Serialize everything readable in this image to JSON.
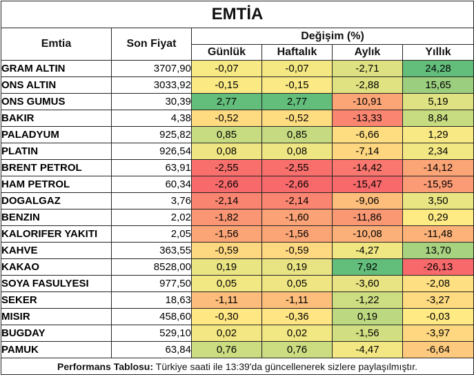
{
  "title": "EMTİA",
  "headers": {
    "commodity": "Emtia",
    "last_price": "Son Fiyat",
    "change_group": "Değişim (%)",
    "daily": "Günlük",
    "weekly": "Haftalık",
    "monthly": "Aylık",
    "yearly": "Yıllık"
  },
  "rows": [
    {
      "name": "GRAM ALTIN",
      "price": "3707,90",
      "daily": "-0,07",
      "weekly": "-0,07",
      "monthly": "-2,71",
      "yearly": "24,28"
    },
    {
      "name": "ONS ALTIN",
      "price": "3033,92",
      "daily": "-0,15",
      "weekly": "-0,15",
      "monthly": "-2,88",
      "yearly": "15,65"
    },
    {
      "name": "ONS GUMUS",
      "price": "30,39",
      "daily": "2,77",
      "weekly": "2,77",
      "monthly": "-10,91",
      "yearly": "5,19"
    },
    {
      "name": "BAKIR",
      "price": "4,38",
      "daily": "-0,52",
      "weekly": "-0,52",
      "monthly": "-13,33",
      "yearly": "8,84"
    },
    {
      "name": "PALADYUM",
      "price": "925,82",
      "daily": "0,85",
      "weekly": "0,85",
      "monthly": "-6,66",
      "yearly": "1,29"
    },
    {
      "name": "PLATIN",
      "price": "926,54",
      "daily": "0,08",
      "weekly": "0,08",
      "monthly": "-7,14",
      "yearly": "2,34"
    },
    {
      "name": "BRENT PETROL",
      "price": "63,91",
      "daily": "-2,55",
      "weekly": "-2,55",
      "monthly": "-14,42",
      "yearly": "-14,12"
    },
    {
      "name": "HAM PETROL",
      "price": "60,34",
      "daily": "-2,66",
      "weekly": "-2,66",
      "monthly": "-15,47",
      "yearly": "-15,95"
    },
    {
      "name": "DOGALGAZ",
      "price": "3,76",
      "daily": "-2,14",
      "weekly": "-2,14",
      "monthly": "-9,06",
      "yearly": "3,50"
    },
    {
      "name": "BENZIN",
      "price": "2,02",
      "daily": "-1,82",
      "weekly": "-1,60",
      "monthly": "-11,86",
      "yearly": "0,29"
    },
    {
      "name": "KALORIFER YAKITI",
      "price": "2,05",
      "daily": "-1,56",
      "weekly": "-1,56",
      "monthly": "-10,08",
      "yearly": "-11,48"
    },
    {
      "name": "KAHVE",
      "price": "363,55",
      "daily": "-0,59",
      "weekly": "-0,59",
      "monthly": "-4,27",
      "yearly": "13,70"
    },
    {
      "name": "KAKAO",
      "price": "8528,00",
      "daily": "0,19",
      "weekly": "0,19",
      "monthly": "7,92",
      "yearly": "-26,13"
    },
    {
      "name": "SOYA FASULYESI",
      "price": "977,50",
      "daily": "0,05",
      "weekly": "0,05",
      "monthly": "-3,60",
      "yearly": "-2,08"
    },
    {
      "name": "SEKER",
      "price": "18,63",
      "daily": "-1,11",
      "weekly": "-1,11",
      "monthly": "-1,22",
      "yearly": "-3,27"
    },
    {
      "name": "MISIR",
      "price": "458,60",
      "daily": "-0,30",
      "weekly": "-0,36",
      "monthly": "0,19",
      "yearly": "-0,03"
    },
    {
      "name": "BUGDAY",
      "price": "529,10",
      "daily": "0,02",
      "weekly": "0,02",
      "monthly": "-1,56",
      "yearly": "-3,97"
    },
    {
      "name": "PAMUK",
      "price": "63,84",
      "daily": "0,76",
      "weekly": "0,76",
      "monthly": "-4,47",
      "yearly": "-6,64"
    }
  ],
  "footer": {
    "label": "Performans Tablosu:",
    "text": " Türkiye saati ile 13:39'da güncellenerek sizlere paylaşılmıştır."
  },
  "heatmap_colors": {
    "negative": "#f8696b",
    "neutral": "#ffeb84",
    "positive": "#63be7b"
  }
}
